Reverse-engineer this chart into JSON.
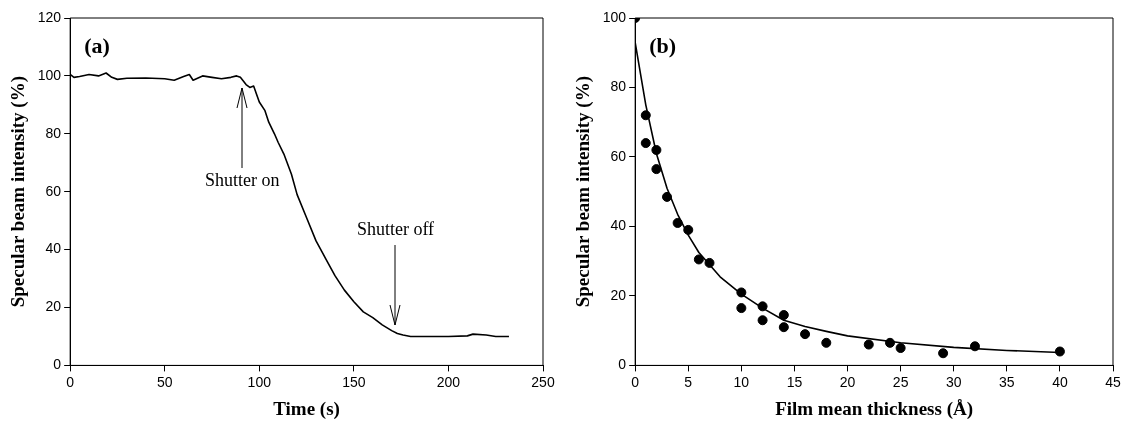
{
  "chart_data": [
    {
      "type": "line",
      "xlabel": "Time (s)",
      "ylabel": "Specular beam intensity (%)",
      "xlim": [
        0,
        250
      ],
      "ylim": [
        0,
        120
      ],
      "xticks": [
        0,
        50,
        100,
        150,
        200,
        250
      ],
      "yticks": [
        0,
        20,
        40,
        60,
        80,
        100,
        120
      ],
      "annotations": [
        "(a)",
        {
          "text": "Shutter on",
          "x": 91,
          "y": 98.7
        },
        {
          "text": "Shutter off",
          "x": 172,
          "y": 11.3
        }
      ],
      "series": [
        {
          "color": "#000000",
          "marker": "none",
          "x": [
            0,
            2,
            5,
            10,
            15,
            19,
            22,
            25,
            30,
            40,
            50,
            55,
            60,
            63,
            65,
            70,
            75,
            80,
            85,
            88,
            90,
            93,
            95,
            97,
            100,
            103,
            105,
            108,
            110,
            113,
            117,
            120,
            125,
            130,
            135,
            140,
            145,
            150,
            155,
            160,
            165,
            170,
            173,
            176,
            180,
            190,
            200,
            210,
            213,
            220,
            225,
            232
          ],
          "values": [
            100.5,
            99.5,
            99.8,
            100.5,
            100,
            101,
            99.5,
            98.8,
            99.2,
            99.3,
            99,
            98.5,
            99.8,
            100.5,
            98.5,
            100,
            99.5,
            99,
            99.5,
            100,
            99.5,
            97,
            96,
            96.5,
            91,
            88,
            84,
            80,
            77,
            73,
            66,
            59,
            51,
            43,
            37,
            31,
            26,
            22,
            18.5,
            16.5,
            14,
            12,
            11,
            10.5,
            10,
            10,
            10,
            10.2,
            10.8,
            10.5,
            10,
            10
          ]
        }
      ]
    },
    {
      "type": "scatter",
      "xlabel": "Film mean thickness (Å)",
      "ylabel": "Specular beam intensity (%)",
      "xlim": [
        0,
        45
      ],
      "ylim": [
        0,
        100
      ],
      "xticks": [
        0,
        5,
        10,
        15,
        20,
        25,
        30,
        35,
        40,
        45
      ],
      "yticks": [
        0,
        20,
        40,
        60,
        80,
        100
      ],
      "annotations": [
        "(b)"
      ],
      "series": [
        {
          "color": "#000000",
          "marker": "circle",
          "x": [
            0,
            1,
            1,
            2,
            2,
            3,
            4,
            5,
            6,
            7,
            10,
            10,
            12,
            12,
            14,
            14,
            16,
            18,
            22,
            24,
            25,
            29,
            32,
            40
          ],
          "values": [
            100,
            72,
            64,
            62,
            56.5,
            48.5,
            41,
            39,
            30.5,
            29.5,
            21,
            16.5,
            17,
            13,
            14.5,
            11,
            9,
            6.5,
            6,
            6.5,
            5,
            3.5,
            5.5,
            4
          ]
        },
        {
          "type": "line",
          "color": "#000000",
          "marker": "none",
          "x": [
            0,
            1,
            2,
            3,
            4,
            5,
            6,
            8,
            10,
            12,
            14,
            16,
            18,
            20,
            25,
            30,
            35,
            40
          ],
          "values": [
            93,
            75,
            61,
            51,
            43.5,
            37.5,
            32.5,
            25.5,
            20.5,
            16.5,
            13,
            11.2,
            9.8,
            8.5,
            6.5,
            5.2,
            4.3,
            3.7
          ]
        }
      ]
    }
  ]
}
